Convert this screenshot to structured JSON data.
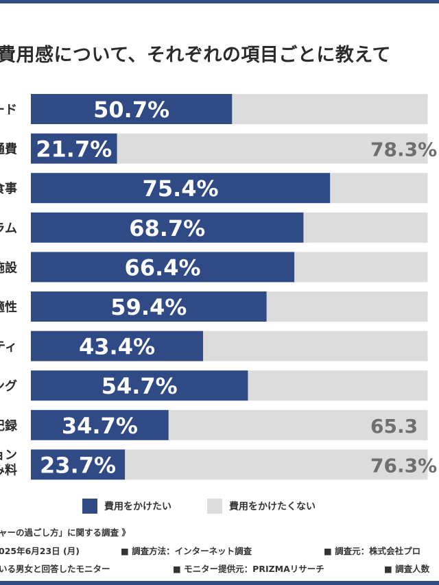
{
  "title": "費用感について、それぞれの項目ごとに教えて",
  "colors": {
    "navy": "#2f4a85",
    "gray": "#dcdcdc",
    "gray_text": "#6f6f6f"
  },
  "chart_data": {
    "type": "bar",
    "stacked": true,
    "orientation": "horizontal",
    "categories": [
      "ード",
      "通費",
      "食事",
      "ラム",
      "施設",
      "適性",
      "ティ",
      "ング",
      "記録",
      "ョン\n込み料"
    ],
    "series": [
      {
        "name": "費用をかけたい",
        "values": [
          50.7,
          21.7,
          75.4,
          68.7,
          66.4,
          59.4,
          43.4,
          54.7,
          34.7,
          23.7
        ],
        "color": "#2f4a85"
      },
      {
        "name": "費用をかけたくない",
        "values": [
          49.3,
          78.3,
          24.6,
          31.3,
          33.6,
          40.6,
          56.6,
          45.3,
          65.3,
          76.3
        ],
        "color": "#dcdcdc"
      }
    ],
    "value_labels": [
      "50.7%",
      "21.7%",
      "75.4%",
      "68.7%",
      "66.4%",
      "59.4%",
      "43.4%",
      "54.7%",
      "34.7%",
      "23.7%"
    ],
    "gray_value_labels": [
      "",
      "78.3%",
      "",
      "",
      "",
      "",
      "",
      "",
      "65.3",
      "76.3%"
    ],
    "xlim": [
      0,
      100
    ]
  },
  "legend": {
    "want": "費用をかけたい",
    "not_want": "費用をかけたくない"
  },
  "notes": {
    "survey_name": "ャーの過ごし方」に関する調査 》",
    "period": "025年6月23日 (月)",
    "method": "■ 調査方法：インターネット調査",
    "org": "■ 調査元：株式会社プロ",
    "target": "いる男女と回答したモニター",
    "provider": "■ モニター提供元：PRIZMAリサーチ",
    "count": "■ 調査人数"
  }
}
